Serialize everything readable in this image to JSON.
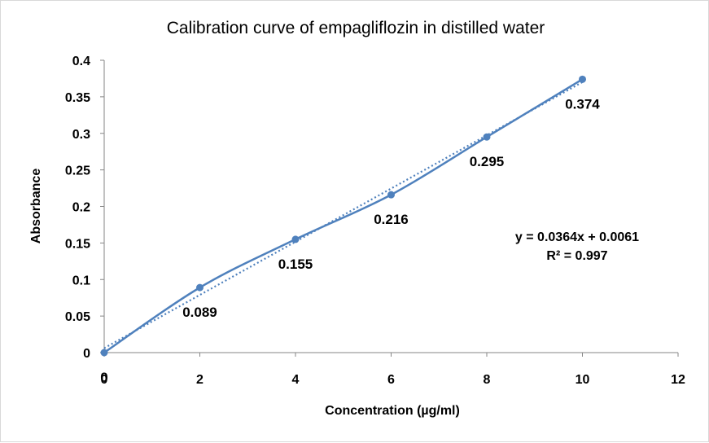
{
  "chart_data": {
    "type": "scatter",
    "title": "Calibration curve of empagliflozin in distilled water",
    "xlabel": "Concentration (µg/ml)",
    "ylabel": "Absorbance",
    "xlim": [
      0,
      12
    ],
    "ylim": [
      0,
      0.4
    ],
    "xticks": [
      0,
      2,
      4,
      6,
      8,
      10,
      12
    ],
    "yticks": [
      "0",
      "0.05",
      "0.1",
      "0.15",
      "0.2",
      "0.25",
      "0.3",
      "0.35",
      "0.4"
    ],
    "grid": false,
    "series": [
      {
        "x": [
          0,
          2,
          4,
          6,
          8,
          10
        ],
        "y": [
          0,
          0.089,
          0.155,
          0.216,
          0.295,
          0.374
        ],
        "labels": [
          "0",
          "0.089",
          "0.155",
          "0.216",
          "0.295",
          "0.374"
        ],
        "line": "smooth",
        "color": "#4f81bd"
      }
    ],
    "trendline": {
      "type": "linear",
      "slope": 0.0364,
      "intercept": 0.0061,
      "style": "dotted",
      "color": "#4f81bd",
      "equation": "y = 0.0364x + 0.0061",
      "r_squared": "R² = 0.997"
    }
  }
}
